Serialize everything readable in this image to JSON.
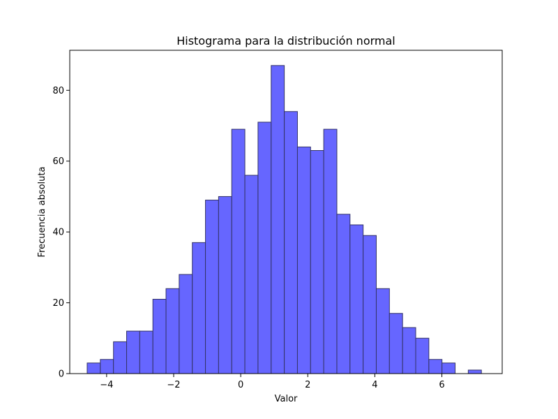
{
  "chart_data": {
    "type": "bar",
    "title": "Histograma para la distribución normal",
    "xlabel": "Valor",
    "ylabel": "Frecuencia absoluta",
    "xlim": [
      -5.1,
      7.8
    ],
    "ylim": [
      0,
      91.3
    ],
    "xticks": [
      -4,
      -2,
      0,
      2,
      4,
      6
    ],
    "yticks": [
      0,
      20,
      40,
      60,
      80
    ],
    "bin_start": -4.58,
    "bin_width": 0.392,
    "values": [
      3,
      4,
      9,
      12,
      12,
      21,
      24,
      28,
      37,
      49,
      50,
      69,
      56,
      71,
      87,
      74,
      64,
      63,
      69,
      45,
      42,
      39,
      24,
      17,
      13,
      10,
      4,
      3,
      0,
      1
    ],
    "bar_color": "#6666ff",
    "edge_color": "#333366",
    "grid": false,
    "legend": "none"
  }
}
